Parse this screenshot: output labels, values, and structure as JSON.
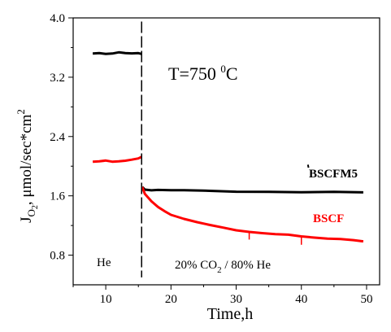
{
  "chart_data": {
    "type": "line",
    "title": "",
    "xlabel": "Time,h",
    "ylabel_main": "J",
    "ylabel_sub": "O",
    "ylabel_sub2": "2",
    "ylabel_rest": ", μmol/sec*cm",
    "ylabel_sup": "2",
    "xlim": [
      5,
      52
    ],
    "ylim": [
      0.4,
      4.0
    ],
    "x_ticks": [
      10,
      20,
      30,
      40,
      50
    ],
    "x_tick_labels": [
      "10",
      "20",
      "30",
      "40",
      "50"
    ],
    "y_ticks": [
      0.8,
      1.6,
      2.4,
      3.2,
      4.0
    ],
    "y_tick_labels": [
      "0.8",
      "1.6",
      "2.4",
      "3.2",
      "4.0"
    ],
    "grid": false,
    "switch_x": 15.5,
    "temperature_label": {
      "text": "T=750 ",
      "sup": "0",
      "unit": "C"
    },
    "region_labels": {
      "he": "He",
      "co2_main": "20% CO",
      "co2_sub": "2",
      "co2_rest": " / 80% He"
    },
    "series": [
      {
        "name": "BSCFM5",
        "color": "#000000",
        "x": [
          8,
          9,
          10,
          11,
          12,
          13,
          14,
          15,
          15.5,
          15.6,
          16,
          17,
          18,
          20,
          22,
          25,
          30,
          35,
          40,
          45,
          49.5
        ],
        "y": [
          3.52,
          3.53,
          3.52,
          3.52,
          3.53,
          3.52,
          3.52,
          3.53,
          3.52,
          1.72,
          1.69,
          1.68,
          1.68,
          1.67,
          1.67,
          1.67,
          1.66,
          1.66,
          1.65,
          1.65,
          1.64
        ]
      },
      {
        "name": "BSCF",
        "color": "#ff0000",
        "x": [
          8,
          9,
          10,
          11,
          12,
          13,
          14,
          15,
          15.5,
          15.6,
          16,
          17,
          18,
          19,
          20,
          22,
          24,
          26,
          28,
          30,
          32,
          34,
          36,
          38,
          40,
          42,
          44,
          46,
          48,
          49.5
        ],
        "y": [
          2.06,
          2.06,
          2.07,
          2.06,
          2.07,
          2.08,
          2.09,
          2.1,
          2.12,
          1.72,
          1.62,
          1.52,
          1.45,
          1.4,
          1.35,
          1.29,
          1.24,
          1.2,
          1.17,
          1.14,
          1.12,
          1.1,
          1.08,
          1.07,
          1.05,
          1.04,
          1.03,
          1.02,
          1.0,
          0.98
        ]
      }
    ]
  }
}
